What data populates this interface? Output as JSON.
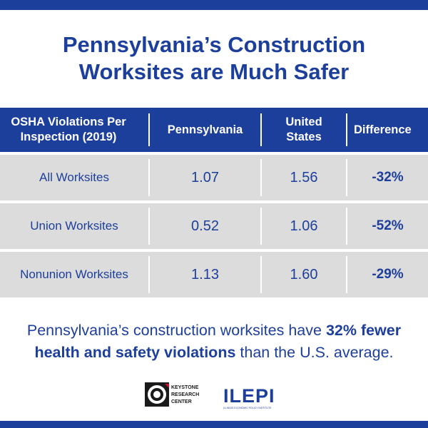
{
  "title": {
    "line1": "Pennsylvania’s Construction",
    "line2": "Worksites are Much Safer"
  },
  "chart_data": {
    "type": "table",
    "columns": [
      "OSHA Violations Per Inspection (2019)",
      "Pennsylvania",
      "United States",
      "Difference"
    ],
    "header_lines": {
      "col0": [
        "OSHA Violations Per",
        "Inspection (2019)"
      ],
      "col1": [
        "Pennsylvania"
      ],
      "col2": [
        "United",
        "States"
      ],
      "col3": [
        "Difference"
      ]
    },
    "rows": [
      {
        "label": "All Worksites",
        "pennsylvania": "1.07",
        "united_states": "1.56",
        "difference": "-32%"
      },
      {
        "label": "Union Worksites",
        "pennsylvania": "0.52",
        "united_states": "1.06",
        "difference": "-52%"
      },
      {
        "label": "Nonunion Worksites",
        "pennsylvania": "1.13",
        "united_states": "1.60",
        "difference": "-29%"
      }
    ]
  },
  "summary": {
    "part1": "Pennsylvania’s construction worksites have ",
    "bold1": "32% fewer",
    "bold2": "health and safety violations",
    "part2": " than the U.S. average."
  },
  "logos": {
    "krc": {
      "line1": "KEYSTONE",
      "line2": "RESEARCH",
      "line3": "CENTER",
      "icon": "keystone-logo-icon"
    },
    "ilepi": {
      "name": "ILEPI",
      "tagline": "ILLINOIS ECONOMIC POLICY INSTITUTE"
    }
  },
  "colors": {
    "brand_blue": "#1d3f9c",
    "row_gray": "#dcdcdc",
    "accent_red": "#c8102e"
  }
}
